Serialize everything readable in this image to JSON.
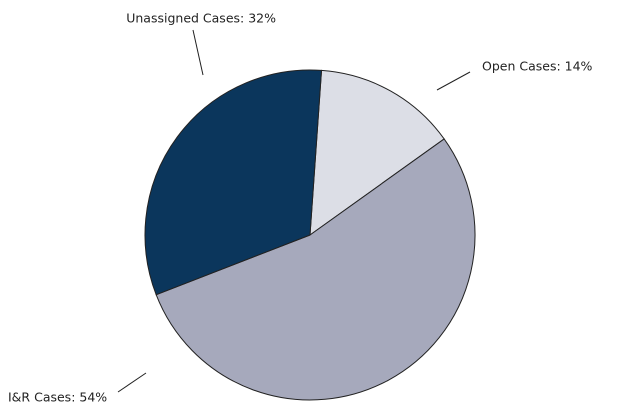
{
  "chart_data": {
    "type": "pie",
    "values": [
      14,
      54,
      32
    ],
    "value_labels": [
      "Open Cases: 14%",
      "I&R Cases: 54%",
      "Unassigned Cases: 32%"
    ],
    "colors": [
      "#dcdee6",
      "#a6a9bc",
      "#0b365c"
    ]
  }
}
